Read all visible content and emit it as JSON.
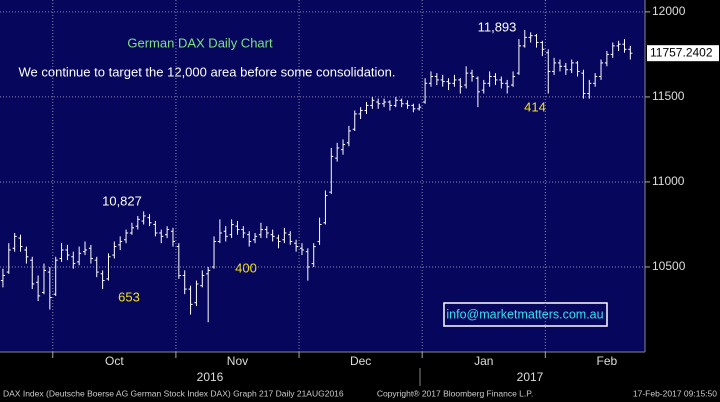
{
  "chart_data": {
    "type": "ohlc",
    "title": "German DAX Daily Chart",
    "subtitle": "We continue to target the 12,000 area before some consolidation.",
    "annotations": [
      "10,827",
      "653",
      "400",
      "11,893",
      "414"
    ],
    "contact": "info@marketmatters.com.au",
    "last_price": 11757.2402,
    "ylim": [
      10000,
      12070
    ],
    "yticks": [
      10500,
      11000,
      11500,
      12000
    ],
    "grid": true,
    "xlim": [
      -0.5,
      109.5
    ],
    "xticks": [
      {
        "value": 9,
        "label": "Oct"
      },
      {
        "value": 30,
        "label": "Nov"
      },
      {
        "value": 51,
        "label": "Dec"
      },
      {
        "value": 72,
        "label": "Jan"
      },
      {
        "value": 93,
        "label": "Feb"
      }
    ],
    "year_labels": [
      "2016",
      "2017"
    ],
    "color": "#ffffff",
    "footer": [
      "DAX Index (Deutsche Boerse AG German Stock Index DAX) Graph 217  Daily 21AUG2016",
      "Copyright® 2017 Bloomberg Finance L.P.",
      "17-Feb-2017 09:15:50"
    ],
    "bars": [
      [
        10420,
        10490,
        10380,
        10450
      ],
      [
        10470,
        10640,
        10460,
        10600
      ],
      [
        10610,
        10700,
        10590,
        10680
      ],
      [
        10670,
        10690,
        10590,
        10620
      ],
      [
        10600,
        10620,
        10520,
        10560
      ],
      [
        10540,
        10560,
        10370,
        10400
      ],
      [
        10410,
        10450,
        10300,
        10330
      ],
      [
        10350,
        10520,
        10340,
        10480
      ],
      [
        10470,
        10500,
        10250,
        10320
      ],
      [
        10340,
        10560,
        10330,
        10540
      ],
      [
        10550,
        10640,
        10530,
        10600
      ],
      [
        10600,
        10630,
        10540,
        10570
      ],
      [
        10560,
        10590,
        10490,
        10520
      ],
      [
        10530,
        10620,
        10510,
        10580
      ],
      [
        10590,
        10650,
        10570,
        10600
      ],
      [
        10610,
        10630,
        10520,
        10550
      ],
      [
        10540,
        10560,
        10440,
        10470
      ],
      [
        10460,
        10480,
        10370,
        10420
      ],
      [
        10430,
        10580,
        10420,
        10560
      ],
      [
        10570,
        10650,
        10550,
        10620
      ],
      [
        10630,
        10680,
        10600,
        10650
      ],
      [
        10660,
        10720,
        10640,
        10700
      ],
      [
        10700,
        10760,
        10690,
        10730
      ],
      [
        10740,
        10800,
        10720,
        10780
      ],
      [
        10770,
        10827,
        10750,
        10800
      ],
      [
        10790,
        10810,
        10740,
        10760
      ],
      [
        10750,
        10770,
        10680,
        10700
      ],
      [
        10700,
        10720,
        10640,
        10680
      ],
      [
        10690,
        10740,
        10670,
        10720
      ],
      [
        10710,
        10730,
        10620,
        10650
      ],
      [
        10620,
        10640,
        10430,
        10450
      ],
      [
        10450,
        10480,
        10340,
        10370
      ],
      [
        10370,
        10390,
        10220,
        10280
      ],
      [
        10290,
        10420,
        10270,
        10400
      ],
      [
        10390,
        10480,
        10380,
        10450
      ],
      [
        10460,
        10500,
        10175,
        10480
      ],
      [
        10500,
        10680,
        10490,
        10650
      ],
      [
        10650,
        10780,
        10640,
        10700
      ],
      [
        10710,
        10740,
        10650,
        10680
      ],
      [
        10690,
        10780,
        10670,
        10750
      ],
      [
        10740,
        10770,
        10690,
        10720
      ],
      [
        10720,
        10740,
        10670,
        10700
      ],
      [
        10690,
        10710,
        10620,
        10650
      ],
      [
        10660,
        10700,
        10640,
        10680
      ],
      [
        10690,
        10760,
        10670,
        10720
      ],
      [
        10720,
        10740,
        10670,
        10700
      ],
      [
        10690,
        10720,
        10650,
        10680
      ],
      [
        10670,
        10690,
        10610,
        10650
      ],
      [
        10660,
        10730,
        10640,
        10700
      ],
      [
        10690,
        10710,
        10630,
        10650
      ],
      [
        10640,
        10660,
        10590,
        10620
      ],
      [
        10610,
        10640,
        10570,
        10600
      ],
      [
        10590,
        10610,
        10420,
        10500
      ],
      [
        10520,
        10640,
        10500,
        10620
      ],
      [
        10650,
        10790,
        10630,
        10750
      ],
      [
        10760,
        10950,
        10750,
        10920
      ],
      [
        10940,
        11200,
        10930,
        11150
      ],
      [
        11140,
        11230,
        11120,
        11200
      ],
      [
        11190,
        11250,
        11160,
        11220
      ],
      [
        11230,
        11330,
        11210,
        11300
      ],
      [
        11310,
        11420,
        11300,
        11400
      ],
      [
        11400,
        11440,
        11370,
        11420
      ],
      [
        11420,
        11470,
        11400,
        11450
      ],
      [
        11450,
        11500,
        11430,
        11480
      ],
      [
        11470,
        11490,
        11430,
        11460
      ],
      [
        11460,
        11490,
        11440,
        11470
      ],
      [
        11470,
        11480,
        11420,
        11450
      ],
      [
        11450,
        11500,
        11440,
        11480
      ],
      [
        11480,
        11490,
        11440,
        11460
      ],
      [
        11460,
        11480,
        11430,
        11450
      ],
      [
        11450,
        11460,
        11410,
        11430
      ],
      [
        11430,
        11460,
        11420,
        11440
      ],
      [
        11470,
        11610,
        11460,
        11580
      ],
      [
        11580,
        11650,
        11560,
        11620
      ],
      [
        11620,
        11640,
        11570,
        11600
      ],
      [
        11600,
        11630,
        11560,
        11590
      ],
      [
        11590,
        11610,
        11540,
        11580
      ],
      [
        11580,
        11630,
        11560,
        11600
      ],
      [
        11600,
        11610,
        11520,
        11560
      ],
      [
        11570,
        11680,
        11550,
        11640
      ],
      [
        11640,
        11660,
        11590,
        11620
      ],
      [
        11610,
        11620,
        11440,
        11530
      ],
      [
        11540,
        11600,
        11520,
        11580
      ],
      [
        11580,
        11650,
        11560,
        11620
      ],
      [
        11620,
        11640,
        11570,
        11600
      ],
      [
        11600,
        11620,
        11550,
        11580
      ],
      [
        11580,
        11600,
        11520,
        11560
      ],
      [
        11570,
        11650,
        11560,
        11620
      ],
      [
        11640,
        11840,
        11630,
        11800
      ],
      [
        11800,
        11893,
        11790,
        11850
      ],
      [
        11850,
        11880,
        11820,
        11860
      ],
      [
        11860,
        11870,
        11790,
        11820
      ],
      [
        11820,
        11830,
        11740,
        11780
      ],
      [
        11760,
        11780,
        11520,
        11650
      ],
      [
        11650,
        11730,
        11630,
        11700
      ],
      [
        11700,
        11720,
        11650,
        11680
      ],
      [
        11680,
        11700,
        11630,
        11660
      ],
      [
        11660,
        11720,
        11640,
        11700
      ],
      [
        11700,
        11710,
        11620,
        11650
      ],
      [
        11640,
        11660,
        11490,
        11520
      ],
      [
        11520,
        11600,
        11490,
        11580
      ],
      [
        11580,
        11640,
        11560,
        11620
      ],
      [
        11620,
        11720,
        11600,
        11700
      ],
      [
        11700,
        11770,
        11680,
        11750
      ],
      [
        11750,
        11820,
        11730,
        11800
      ],
      [
        11800,
        11830,
        11770,
        11810
      ],
      [
        11810,
        11840,
        11760,
        11780
      ],
      [
        11780,
        11800,
        11720,
        11757
      ]
    ]
  }
}
